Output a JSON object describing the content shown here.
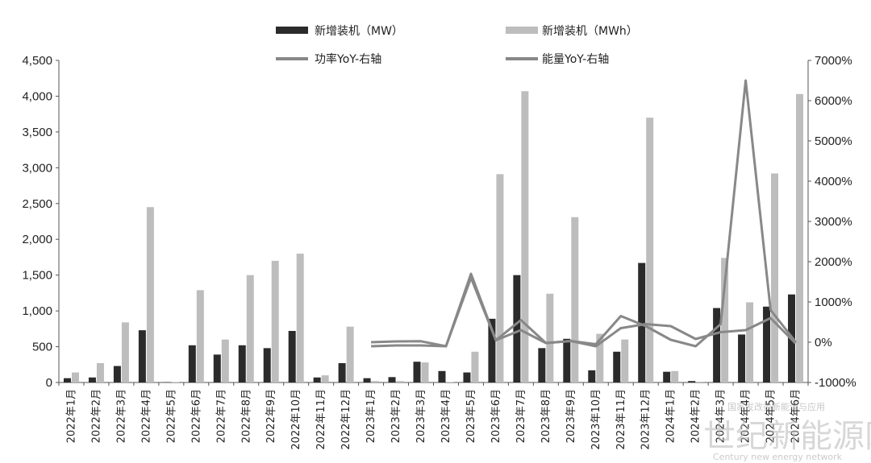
{
  "chart_data": {
    "type": "bar",
    "categories": [
      "2022年1月",
      "2022年2月",
      "2022年3月",
      "2022年4月",
      "2022年5月",
      "2022年6月",
      "2022年7月",
      "2022年8月",
      "2022年9月",
      "2022年10月",
      "2022年11月",
      "2022年12月",
      "2023年1月",
      "2023年2月",
      "2023年3月",
      "2023年4月",
      "2023年5月",
      "2023年6月",
      "2023年7月",
      "2023年8月",
      "2023年9月",
      "2023年10月",
      "2023年11月",
      "2023年12月",
      "2024年1月",
      "2024年2月",
      "2024年3月",
      "2024年4月",
      "2024年5月",
      "2024年6月"
    ],
    "series": [
      {
        "name": "新增装机（MW）",
        "type": "bar",
        "axis": "left",
        "color": "#2b2b2b",
        "values": [
          60,
          70,
          230,
          730,
          5,
          520,
          390,
          520,
          480,
          720,
          70,
          270,
          60,
          75,
          290,
          160,
          140,
          890,
          1500,
          480,
          610,
          170,
          430,
          1670,
          150,
          20,
          1040,
          670,
          1060,
          1230
        ]
      },
      {
        "name": "新增装机（MWh）",
        "type": "bar",
        "axis": "left",
        "color": "#bdbdbd",
        "values": [
          140,
          270,
          840,
          2450,
          5,
          1290,
          600,
          1500,
          1700,
          1800,
          100,
          780,
          20,
          20,
          280,
          5,
          430,
          2910,
          4070,
          1240,
          2310,
          680,
          600,
          3700,
          160,
          10,
          1740,
          1120,
          2920,
          4030
        ]
      },
      {
        "name": "功率YoY-右轴",
        "type": "line",
        "axis": "right",
        "color": "#888888",
        "values": [
          null,
          null,
          null,
          null,
          null,
          null,
          null,
          null,
          null,
          null,
          null,
          null,
          0,
          20,
          25,
          -100,
          1700,
          50,
          300,
          -20,
          30,
          -50,
          650,
          400,
          60,
          -100,
          450,
          6500,
          800,
          10
        ]
      },
      {
        "name": "能量YoY-右轴",
        "type": "line",
        "axis": "right",
        "color": "#888888",
        "values": [
          null,
          null,
          null,
          null,
          null,
          null,
          null,
          null,
          null,
          null,
          null,
          null,
          -100,
          -80,
          -80,
          -100,
          1600,
          50,
          550,
          -20,
          30,
          -100,
          350,
          450,
          400,
          80,
          250,
          300,
          600,
          -30
        ]
      }
    ],
    "y_left": {
      "ticks": [
        "0",
        "500",
        "1,000",
        "1,500",
        "2,000",
        "2,500",
        "3,000",
        "3,500",
        "4,000",
        "4,500"
      ],
      "lim": [
        0,
        4500
      ]
    },
    "y_right": {
      "ticks": [
        "-1000%",
        "0%",
        "1000%",
        "2000%",
        "3000%",
        "4000%",
        "5000%",
        "6000%",
        "7000%"
      ],
      "lim": [
        -1000,
        7000
      ]
    },
    "legend_position": "top",
    "grid": false
  },
  "watermark": {
    "main": "世纪新能源网",
    "sub": "Century new energy network",
    "small": "国家发改委新能源与应用"
  }
}
